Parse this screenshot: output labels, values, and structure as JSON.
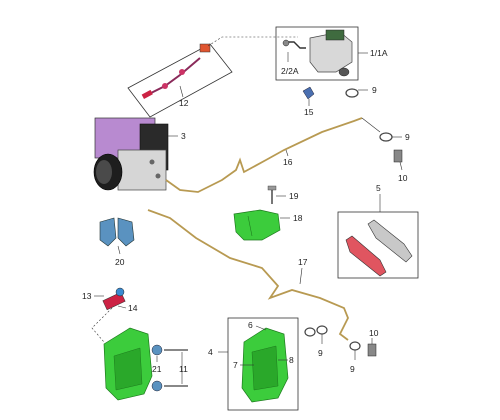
{
  "callouts": {
    "c1_1a": "1/1A",
    "c2_2a": "2/2A",
    "c3": "3",
    "c4": "4",
    "c5": "5",
    "c6": "6",
    "c7": "7",
    "c8": "8",
    "c9a": "9",
    "c9b": "9",
    "c9c": "9",
    "c9d": "9",
    "c9e": "9",
    "c10a": "10",
    "c10b": "10",
    "c11": "11",
    "c12": "12",
    "c13": "13",
    "c14": "14",
    "c15": "15",
    "c16": "16",
    "c17": "17",
    "c18": "18",
    "c19": "19",
    "c20": "20",
    "c21": "21"
  },
  "colors": {
    "pipe": "#b89a52",
    "green_part": "#3ccc3c",
    "blue_part": "#5a92c0",
    "purple_part": "#b88ad0",
    "pad_red": "#e05560",
    "line": "#333333"
  }
}
